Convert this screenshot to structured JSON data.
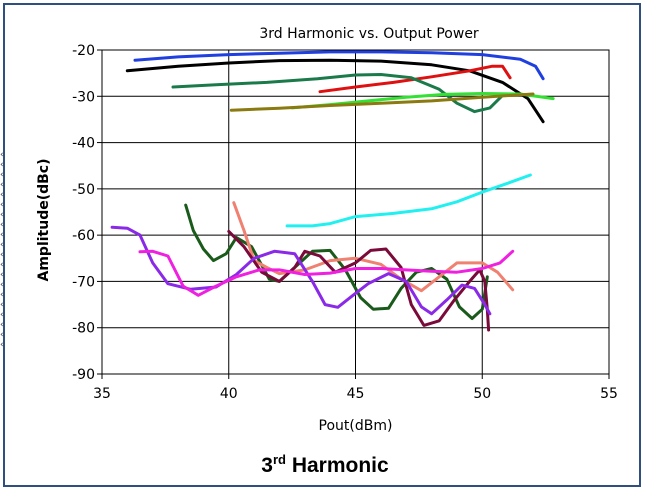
{
  "chart_data": {
    "type": "line",
    "title": "3rd Harmonic  vs. Output Power",
    "xlabel": "Pout(dBm)",
    "ylabel": "Amplitude(dBc)",
    "xlim": [
      35,
      55
    ],
    "ylim": [
      -90,
      -20
    ],
    "x_ticks": [
      "35",
      "40",
      "45",
      "50",
      "55"
    ],
    "y_ticks": [
      "-20",
      "-30",
      "-40",
      "-50",
      "-60",
      "-70",
      "-80",
      "-90"
    ],
    "grid": "horizontal and vertical",
    "series": [
      {
        "color": "#1f3fe0",
        "points": [
          [
            36.3,
            -22.2
          ],
          [
            38,
            -21.5
          ],
          [
            40,
            -21
          ],
          [
            42,
            -20.7
          ],
          [
            44,
            -20.4
          ],
          [
            46,
            -20.4
          ],
          [
            48,
            -20.6
          ],
          [
            50,
            -21
          ],
          [
            51.5,
            -22
          ],
          [
            52.1,
            -23.5
          ],
          [
            52.4,
            -26.2
          ]
        ]
      },
      {
        "color": "#000000",
        "points": [
          [
            36,
            -24.5
          ],
          [
            38,
            -23.5
          ],
          [
            40,
            -22.8
          ],
          [
            42,
            -22.3
          ],
          [
            44,
            -22.2
          ],
          [
            46,
            -22.4
          ],
          [
            48,
            -23.2
          ],
          [
            49.5,
            -24.5
          ],
          [
            50.8,
            -27
          ],
          [
            51.8,
            -30.5
          ],
          [
            52.4,
            -35.5
          ]
        ]
      },
      {
        "color": "#e01010",
        "points": [
          [
            43.6,
            -29
          ],
          [
            45,
            -28
          ],
          [
            46.5,
            -27
          ],
          [
            48,
            -25.8
          ],
          [
            49.5,
            -24.5
          ],
          [
            50.4,
            -23.5
          ],
          [
            50.8,
            -23.5
          ],
          [
            51.1,
            -26
          ]
        ]
      },
      {
        "color": "#1a7a4a",
        "points": [
          [
            37.8,
            -28
          ],
          [
            39.5,
            -27.5
          ],
          [
            41.5,
            -27
          ],
          [
            43.5,
            -26.2
          ],
          [
            45,
            -25.4
          ],
          [
            46,
            -25.3
          ],
          [
            47.2,
            -26
          ],
          [
            48.3,
            -28.5
          ],
          [
            49,
            -31.5
          ],
          [
            49.7,
            -33.3
          ],
          [
            50.3,
            -32.5
          ],
          [
            50.8,
            -29.8
          ]
        ]
      },
      {
        "color": "#33e033",
        "points": [
          [
            42.5,
            -32.5
          ],
          [
            44,
            -31.8
          ],
          [
            45.5,
            -31
          ],
          [
            47,
            -30.2
          ],
          [
            48.5,
            -29.6
          ],
          [
            50,
            -29.4
          ],
          [
            51.5,
            -29.5
          ],
          [
            52.8,
            -30.5
          ]
        ]
      },
      {
        "color": "#8a7a10",
        "points": [
          [
            40.1,
            -33
          ],
          [
            42,
            -32.6
          ],
          [
            44,
            -32
          ],
          [
            46,
            -31.5
          ],
          [
            48,
            -31
          ],
          [
            50,
            -30.2
          ],
          [
            52,
            -29.5
          ]
        ]
      },
      {
        "color": "#22f0f0",
        "points": [
          [
            42.3,
            -58
          ],
          [
            43.3,
            -58
          ],
          [
            44,
            -57.5
          ],
          [
            45,
            -56
          ],
          [
            46.5,
            -55.3
          ],
          [
            48,
            -54.3
          ],
          [
            49,
            -52.8
          ],
          [
            50,
            -50.7
          ],
          [
            51,
            -48.8
          ],
          [
            51.9,
            -47
          ]
        ]
      },
      {
        "color": "#1a5a1a",
        "points": [
          [
            38.3,
            -53.5
          ],
          [
            38.6,
            -59
          ],
          [
            39,
            -63
          ],
          [
            39.4,
            -65.5
          ],
          [
            39.9,
            -64
          ],
          [
            40.3,
            -60.5
          ],
          [
            40.9,
            -62.5
          ],
          [
            41.3,
            -66.5
          ],
          [
            41.6,
            -69.5
          ],
          [
            42,
            -70
          ],
          [
            42.6,
            -67
          ],
          [
            43.3,
            -63.5
          ],
          [
            44,
            -63.3
          ],
          [
            44.6,
            -67.5
          ],
          [
            45.2,
            -73.5
          ],
          [
            45.7,
            -76
          ],
          [
            46.3,
            -75.8
          ],
          [
            46.8,
            -71.5
          ],
          [
            47.4,
            -68
          ],
          [
            48,
            -67.2
          ],
          [
            48.6,
            -69.5
          ],
          [
            49.1,
            -75.5
          ],
          [
            49.6,
            -78
          ],
          [
            50,
            -76
          ],
          [
            50.2,
            -69
          ]
        ]
      },
      {
        "color": "#f08070",
        "points": [
          [
            40.2,
            -53
          ],
          [
            40.6,
            -59
          ],
          [
            41,
            -65.5
          ],
          [
            41.5,
            -67
          ],
          [
            42,
            -68.3
          ],
          [
            43,
            -67.5
          ],
          [
            44,
            -65.5
          ],
          [
            45,
            -65
          ],
          [
            46,
            -66.3
          ],
          [
            46.8,
            -69.5
          ],
          [
            47.6,
            -72
          ],
          [
            48.3,
            -69
          ],
          [
            49,
            -66
          ],
          [
            50,
            -66
          ],
          [
            50.6,
            -68
          ],
          [
            51.2,
            -71.8
          ]
        ]
      },
      {
        "color": "#7a0a3a",
        "points": [
          [
            40,
            -59.2
          ],
          [
            40.6,
            -62.5
          ],
          [
            41.3,
            -68
          ],
          [
            42,
            -70
          ],
          [
            42.6,
            -67
          ],
          [
            43,
            -63.5
          ],
          [
            43.6,
            -64.5
          ],
          [
            44.2,
            -68
          ],
          [
            45,
            -66
          ],
          [
            45.6,
            -63.3
          ],
          [
            46.2,
            -63
          ],
          [
            46.8,
            -67
          ],
          [
            47.2,
            -75
          ],
          [
            47.7,
            -79.5
          ],
          [
            48.3,
            -78.5
          ],
          [
            48.9,
            -74
          ],
          [
            49.5,
            -70
          ],
          [
            49.9,
            -67.5
          ],
          [
            50.1,
            -70
          ],
          [
            50.2,
            -76
          ],
          [
            50.25,
            -80.5
          ]
        ]
      },
      {
        "color": "#8a2ae8",
        "points": [
          [
            35.4,
            -58.3
          ],
          [
            36,
            -58.5
          ],
          [
            36.5,
            -60
          ],
          [
            37,
            -66
          ],
          [
            37.6,
            -70.5
          ],
          [
            38.5,
            -71.7
          ],
          [
            39.5,
            -71.2
          ],
          [
            40.3,
            -68.5
          ],
          [
            41,
            -65
          ],
          [
            41.8,
            -63.5
          ],
          [
            42.6,
            -64
          ],
          [
            43.3,
            -70
          ],
          [
            43.8,
            -75
          ],
          [
            44.3,
            -75.6
          ],
          [
            44.9,
            -73
          ],
          [
            45.5,
            -70.5
          ],
          [
            46.3,
            -68.3
          ],
          [
            47,
            -70
          ],
          [
            47.6,
            -75.5
          ],
          [
            48,
            -77
          ],
          [
            48.6,
            -74
          ],
          [
            49.2,
            -70.8
          ],
          [
            49.7,
            -71.5
          ],
          [
            50.1,
            -75
          ],
          [
            50.3,
            -77
          ]
        ]
      },
      {
        "color": "#f020e0",
        "points": [
          [
            36.5,
            -63.6
          ],
          [
            37,
            -63.5
          ],
          [
            37.6,
            -64.5
          ],
          [
            38.2,
            -71
          ],
          [
            38.8,
            -73
          ],
          [
            39.5,
            -71
          ],
          [
            40.3,
            -69
          ],
          [
            41.2,
            -67.5
          ],
          [
            42,
            -67.5
          ],
          [
            43,
            -68.5
          ],
          [
            44,
            -68.2
          ],
          [
            45,
            -67.2
          ],
          [
            46,
            -67.2
          ],
          [
            47,
            -67.5
          ],
          [
            48,
            -67.8
          ],
          [
            49,
            -68
          ],
          [
            50,
            -67.2
          ],
          [
            50.7,
            -66
          ],
          [
            51.2,
            -63.5
          ]
        ]
      }
    ]
  },
  "caption": {
    "prefix": "3",
    "superscript": "rd",
    "suffix": " Harmonic"
  },
  "edge_marks": "‹ ‹ ‹ ‹ ‹ ‹ ‹ ‹ ‹ ‹ ‹ ‹ ‹ ‹ ‹ ‹ ‹ ‹ ‹ ‹"
}
